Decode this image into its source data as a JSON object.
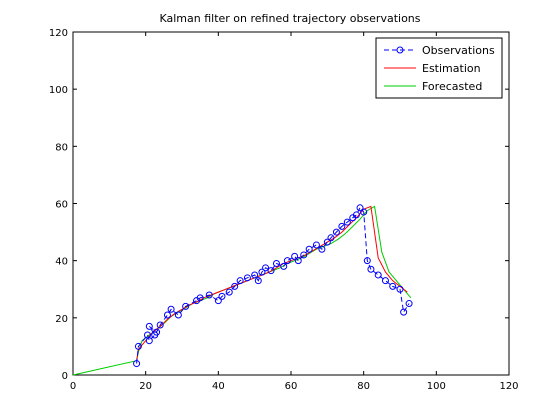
{
  "chart_data": {
    "type": "line",
    "title": "Kalman filter on refined trajectory observations",
    "xlabel": "",
    "ylabel": "",
    "xlim": [
      0,
      120
    ],
    "ylim": [
      0,
      120
    ],
    "xticks": [
      "0",
      "20",
      "40",
      "60",
      "80",
      "100",
      "120"
    ],
    "yticks": [
      "0",
      "20",
      "40",
      "60",
      "80",
      "100",
      "120"
    ],
    "grid": false,
    "legend_position": "top-right",
    "series": [
      {
        "name": "Observations",
        "color": "#0000ff",
        "style": "dashed-circles",
        "x": [
          17.5,
          18,
          20.5,
          21,
          22.5,
          21,
          23,
          24,
          26,
          27,
          29,
          31,
          34,
          35,
          37.5,
          40,
          41,
          43,
          44.5,
          46,
          48,
          50,
          51,
          52,
          53,
          54.5,
          56,
          58,
          59,
          61,
          62,
          63.5,
          65,
          67,
          68.5,
          70,
          71,
          72.5,
          74,
          75.5,
          77,
          78,
          79,
          80,
          81,
          82,
          84,
          86,
          88,
          90,
          91,
          92.5
        ],
        "y": [
          4,
          10,
          14,
          12,
          14,
          17,
          15,
          17.5,
          21,
          23,
          21,
          24,
          26,
          27,
          28,
          26,
          27.5,
          29,
          31,
          33,
          34,
          35,
          33,
          36,
          37.5,
          36.5,
          39,
          38,
          40,
          41.5,
          40,
          42,
          44,
          45.5,
          44,
          46.5,
          48,
          50,
          52,
          53.5,
          55,
          56,
          58.5,
          57,
          40,
          37,
          35,
          33,
          31,
          30,
          22,
          25
        ]
      },
      {
        "name": "Estimation",
        "color": "#ff0000",
        "style": "solid",
        "x": [
          17.5,
          18,
          20,
          22,
          24,
          26,
          28,
          30,
          32,
          34,
          36,
          38,
          40,
          42,
          44,
          46,
          48,
          50,
          52,
          54,
          56,
          58,
          60,
          62,
          64,
          66,
          68,
          70,
          72,
          74,
          76,
          78,
          80,
          82,
          84,
          86,
          88,
          90,
          92
        ],
        "y": [
          5,
          9,
          12,
          15,
          17,
          19.5,
          21.5,
          23,
          24.5,
          25.5,
          27,
          28,
          29,
          30,
          31,
          32,
          33,
          34,
          35,
          36,
          37.5,
          39,
          40,
          41,
          42,
          43.5,
          45,
          46.5,
          48,
          50,
          52.5,
          55,
          58,
          59,
          41,
          36,
          33,
          31,
          29
        ]
      },
      {
        "name": "Forecasted",
        "color": "#00cc00",
        "style": "solid",
        "x": [
          0,
          17.5,
          18,
          19,
          21,
          23,
          25,
          27,
          29,
          31,
          33,
          35,
          37,
          39,
          41,
          43,
          45,
          47,
          49,
          51,
          53,
          55,
          57,
          59,
          61,
          63,
          65,
          67,
          69,
          71,
          73,
          75,
          77,
          79,
          81,
          83,
          85,
          87,
          89,
          91,
          93
        ],
        "y": [
          0,
          5,
          8,
          12,
          14,
          16,
          18,
          20.5,
          22,
          23.5,
          25,
          26,
          27,
          28.5,
          29.5,
          30.5,
          31.5,
          32.5,
          33.5,
          34.5,
          35.5,
          36.5,
          37.5,
          39,
          40,
          41,
          42.5,
          44,
          45,
          46,
          47.5,
          49.5,
          52,
          54.5,
          57.5,
          59,
          43,
          36,
          33,
          30,
          27
        ]
      }
    ]
  }
}
